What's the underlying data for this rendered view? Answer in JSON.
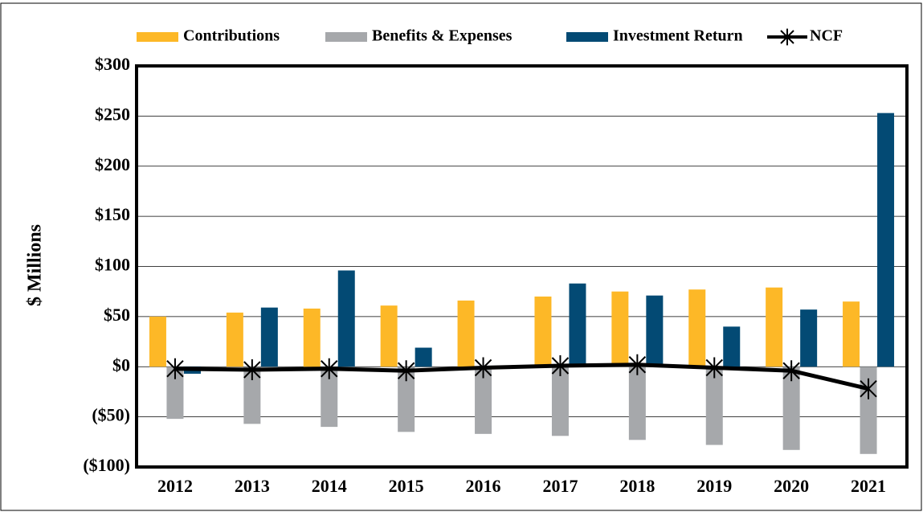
{
  "chart_data": {
    "type": "bar",
    "y_label": "$ Millions",
    "categories": [
      "2012",
      "2013",
      "2014",
      "2015",
      "2016",
      "2017",
      "2018",
      "2019",
      "2020",
      "2021"
    ],
    "series": [
      {
        "name": "Contributions",
        "color": "#fdb827",
        "values": [
          50,
          54,
          58,
          61,
          66,
          70,
          75,
          77,
          79,
          65
        ]
      },
      {
        "name": "Benefits & Expenses",
        "color": "#a6a8ab",
        "values": [
          -52,
          -57,
          -60,
          -65,
          -67,
          -69,
          -73,
          -78,
          -83,
          -87
        ]
      },
      {
        "name": "Investment Return",
        "color": "#034a74",
        "values": [
          -7,
          59,
          96,
          19,
          0,
          83,
          71,
          40,
          57,
          253
        ]
      },
      {
        "name": "NCF",
        "color": "#000000",
        "type": "line",
        "values": [
          -2,
          -3,
          -2,
          -4,
          -1,
          1,
          2,
          -1,
          -4,
          -22
        ]
      }
    ],
    "ylim": [
      -100,
      300
    ],
    "yticks": [
      {
        "value": -100,
        "label": "($100)"
      },
      {
        "value": -50,
        "label": "($50)"
      },
      {
        "value": 0,
        "label": "$0"
      },
      {
        "value": 50,
        "label": "$50"
      },
      {
        "value": 100,
        "label": "$100"
      },
      {
        "value": 150,
        "label": "$150"
      },
      {
        "value": 200,
        "label": "$200"
      },
      {
        "value": 250,
        "label": "$250"
      },
      {
        "value": 300,
        "label": "$300"
      }
    ],
    "grid": true,
    "legend": "top"
  }
}
